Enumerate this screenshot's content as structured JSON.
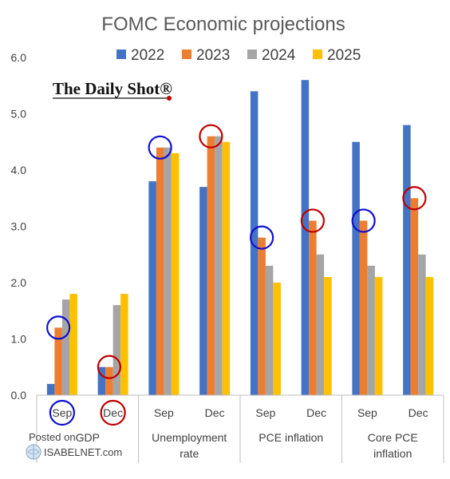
{
  "chart_data": {
    "type": "bar",
    "title": "FOMC Economic projections",
    "ylim": [
      0,
      6
    ],
    "yticks": [
      "0.0",
      "1.0",
      "2.0",
      "3.0",
      "4.0",
      "5.0",
      "6.0"
    ],
    "grid": false,
    "legend_position": "top",
    "groups": [
      "GDP",
      "Unemployment rate",
      "PCE inflation",
      "Core PCE inflation"
    ],
    "categories": [
      "Sep",
      "Dec",
      "Sep",
      "Dec",
      "Sep",
      "Dec",
      "Sep",
      "Dec"
    ],
    "series": [
      {
        "name": "2022",
        "color": "#4472C4",
        "values": [
          0.2,
          0.5,
          3.8,
          3.7,
          5.4,
          5.6,
          4.5,
          4.8
        ]
      },
      {
        "name": "2023",
        "color": "#ED7D31",
        "values": [
          1.2,
          0.5,
          4.4,
          4.6,
          2.8,
          3.1,
          3.1,
          3.5
        ]
      },
      {
        "name": "2024",
        "color": "#A5A5A5",
        "values": [
          1.7,
          1.6,
          4.4,
          4.6,
          2.3,
          2.5,
          2.3,
          2.5
        ]
      },
      {
        "name": "2025",
        "color": "#FFC000",
        "values": [
          1.8,
          1.8,
          4.3,
          4.5,
          2.0,
          2.1,
          2.1,
          2.1
        ]
      }
    ],
    "highlights": [
      {
        "category_index": 0,
        "series_index": 1,
        "color": "#1010D0"
      },
      {
        "category_index": 1,
        "series_index": 1,
        "color": "#C00000"
      },
      {
        "category_index": 2,
        "series_index": 1,
        "color": "#1010D0"
      },
      {
        "category_index": 3,
        "series_index": 1,
        "color": "#C00000"
      },
      {
        "category_index": 4,
        "series_index": 1,
        "color": "#1010D0"
      },
      {
        "category_index": 5,
        "series_index": 1,
        "color": "#C00000"
      },
      {
        "category_index": 6,
        "series_index": 1,
        "color": "#1010D0"
      },
      {
        "category_index": 7,
        "series_index": 1,
        "color": "#C00000"
      }
    ],
    "category_circles": [
      {
        "category_index": 0,
        "color": "#1010D0"
      },
      {
        "category_index": 1,
        "color": "#C00000"
      }
    ]
  },
  "branding": {
    "watermark": "The Daily Shot®",
    "posted_on": "Posted on",
    "site": "ISABELNET.com"
  }
}
